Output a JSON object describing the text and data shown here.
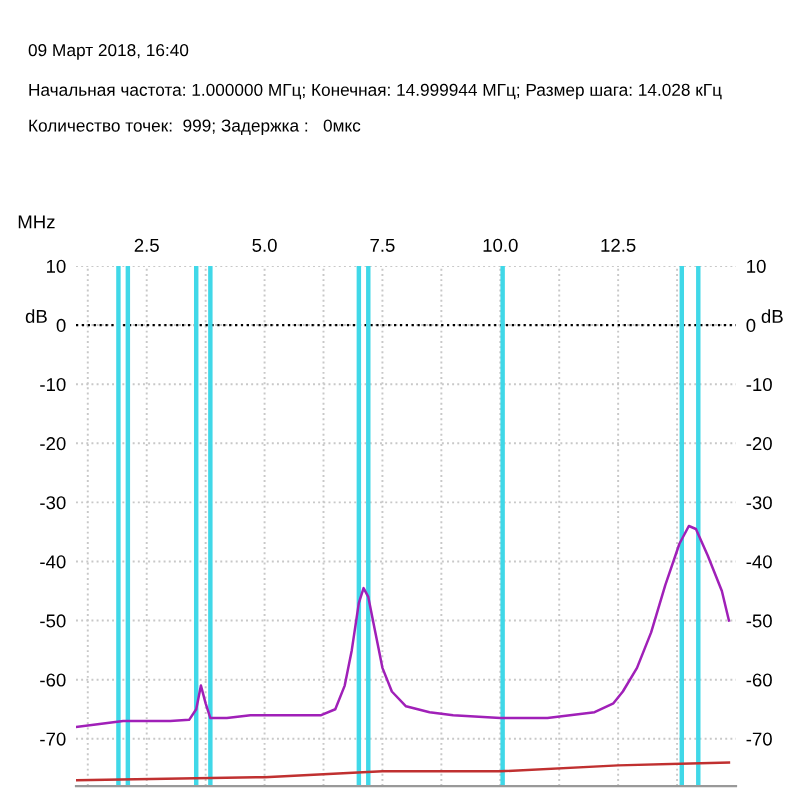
{
  "chart_data": {
    "type": "line",
    "title": "09 Март 2018, 16:40",
    "annotations": [
      "Начальная частота: 1.000000 МГц; Конечная: 14.999944 МГц; Размер шага: 14.028 кГц",
      "Количество точек:  999; Задержка :   0мкс"
    ],
    "xlabel": "MHz",
    "ylabel": "dB",
    "y2label": "dB",
    "series": [
      {
        "color": "#a020b8",
        "x": [
          1.0,
          1.5,
          2.0,
          2.5,
          3.0,
          3.4,
          3.55,
          3.65,
          3.75,
          3.85,
          4.2,
          4.7,
          5.2,
          5.7,
          6.2,
          6.5,
          6.7,
          6.85,
          7.0,
          7.1,
          7.2,
          7.35,
          7.5,
          7.7,
          8.0,
          8.5,
          9.0,
          10.0,
          11.0,
          12.0,
          12.4,
          12.6,
          12.9,
          13.2,
          13.5,
          13.8,
          14.0,
          14.15,
          14.4,
          14.7,
          14.85
        ],
        "values": [
          -68,
          -67.5,
          -67,
          -67,
          -67,
          -66.8,
          -65,
          -61,
          -64,
          -66.5,
          -66.5,
          -66,
          -66,
          -66,
          -66,
          -65,
          -61,
          -55,
          -47,
          -44.5,
          -46,
          -52,
          -58,
          -62,
          -64.5,
          -65.5,
          -66,
          -66.5,
          -66.5,
          -65.5,
          -64,
          -62,
          -58,
          -52,
          -44,
          -37,
          -34,
          -34.5,
          -39,
          -45,
          -50
        ]
      },
      {
        "color": "#c03030",
        "x": [
          1.0,
          5.0,
          7.5,
          10.0,
          12.5,
          14.85
        ],
        "values": [
          -77,
          -76.5,
          -75.5,
          -75.5,
          -74.5,
          -74
        ]
      }
    ],
    "xlim": [
      1,
      15
    ],
    "xticks": [
      {
        "value": 1.25,
        "label": null
      },
      {
        "value": 2.5,
        "label": "2.5"
      },
      {
        "value": 3.75,
        "label": null
      },
      {
        "value": 5.0,
        "label": "5.0"
      },
      {
        "value": 6.25,
        "label": null
      },
      {
        "value": 7.5,
        "label": "7.5"
      },
      {
        "value": 8.75,
        "label": null
      },
      {
        "value": 10.0,
        "label": "10.0"
      },
      {
        "value": 11.25,
        "label": null
      },
      {
        "value": 12.5,
        "label": "12.5"
      },
      {
        "value": 13.75,
        "label": null
      }
    ],
    "ylim": [
      -78,
      10
    ],
    "yticks": [
      10,
      0,
      -10,
      -20,
      -30,
      -40,
      -50,
      -60,
      -70
    ],
    "y2lim": [
      -78,
      10
    ],
    "y2ticks": [
      10,
      0,
      -10,
      -20,
      -30,
      -40,
      -50,
      -60,
      -70
    ],
    "ref_lines": [
      {
        "axis": "y",
        "value": 0,
        "color": "#000000",
        "line_style": "dotted"
      },
      {
        "axis": "x",
        "value": 1.9,
        "color": "#40d8e8"
      },
      {
        "axis": "x",
        "value": 2.1,
        "color": "#40d8e8"
      },
      {
        "axis": "x",
        "value": 3.55,
        "color": "#40d8e8"
      },
      {
        "axis": "x",
        "value": 3.85,
        "color": "#40d8e8"
      },
      {
        "axis": "x",
        "value": 7.0,
        "color": "#40d8e8"
      },
      {
        "axis": "x",
        "value": 7.2,
        "color": "#40d8e8"
      },
      {
        "axis": "x",
        "value": 10.05,
        "color": "#40d8e8"
      },
      {
        "axis": "x",
        "value": 13.85,
        "color": "#40d8e8"
      },
      {
        "axis": "x",
        "value": 14.2,
        "color": "#40d8e8"
      }
    ],
    "grid": true,
    "line_style": "solid",
    "marker": "none",
    "legend": false
  }
}
